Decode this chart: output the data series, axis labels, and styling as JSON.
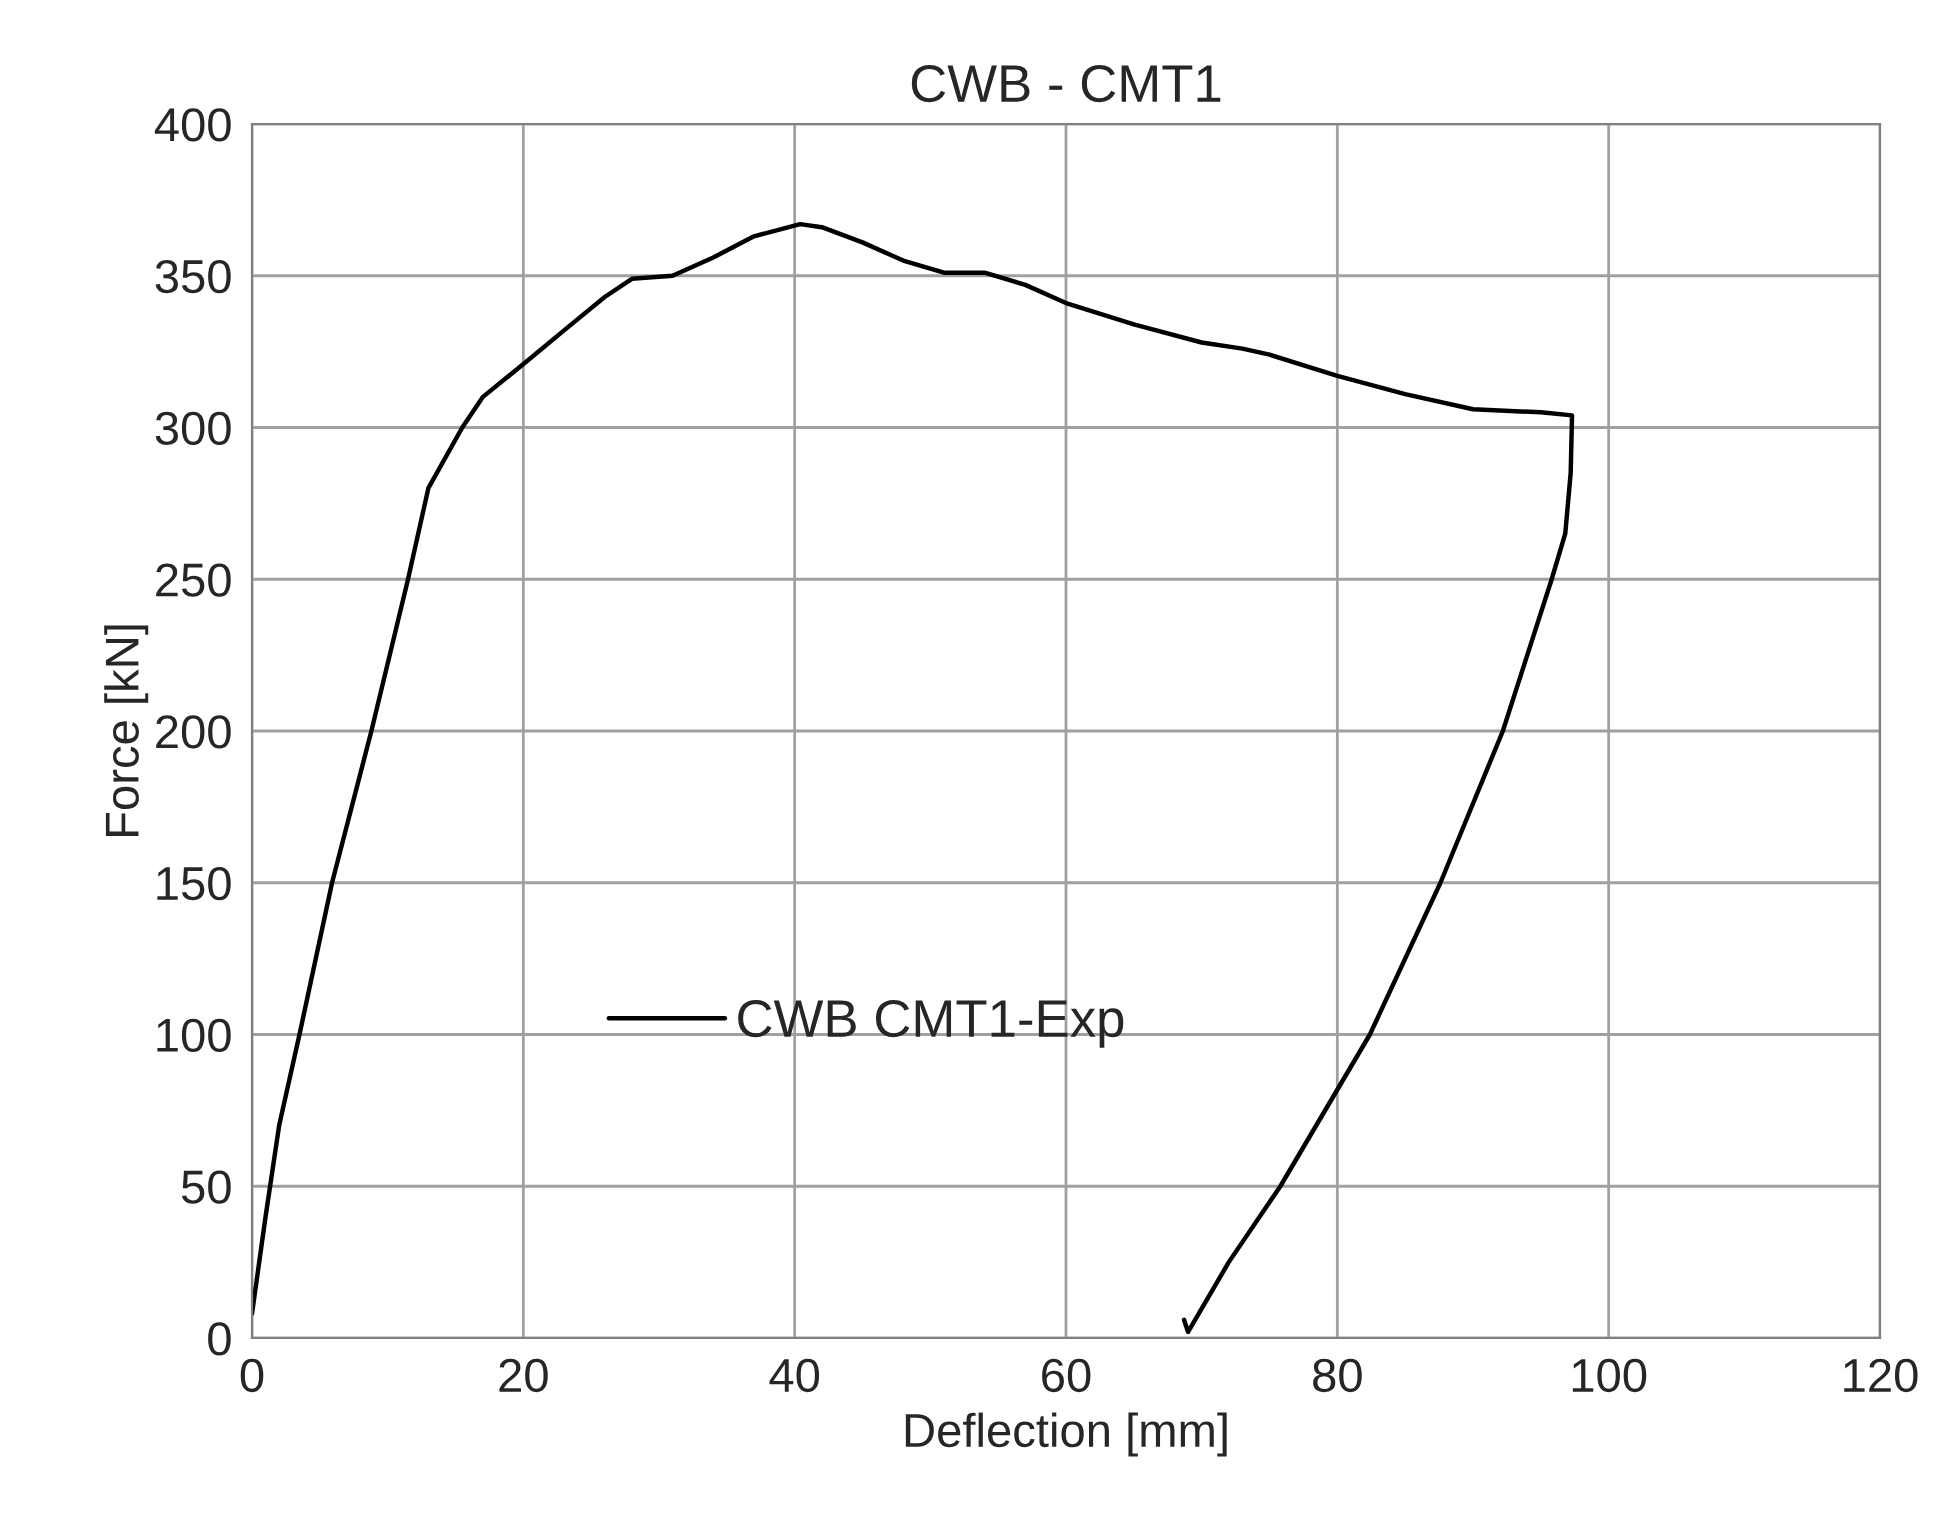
{
  "chart_data": {
    "type": "line",
    "title": "CWB - CMT1",
    "xlabel": "Deflection [mm]",
    "ylabel": "Force [kN]",
    "xlim": [
      0,
      120
    ],
    "xticks": [
      0,
      20,
      40,
      60,
      80,
      100,
      120
    ],
    "ylim": [
      0,
      400
    ],
    "yticks": [
      0,
      50,
      100,
      150,
      200,
      250,
      300,
      350,
      400
    ],
    "grid": true,
    "legend": "bottom left",
    "marker": "none",
    "line_style": "solid",
    "series": [
      {
        "name": "CWB CMT1-Exp",
        "color": "#000000",
        "x": [
          0,
          1,
          2,
          3.5,
          5.9,
          8.8,
          11.5,
          13,
          15.5,
          17,
          20.3,
          23,
          26,
          28,
          31,
          34,
          37,
          40.4,
          42,
          45,
          48,
          51,
          54,
          57,
          60,
          65,
          70,
          73,
          75,
          80,
          85,
          90,
          95,
          97.3,
          97.2,
          96.8,
          95.8,
          94,
          92.2,
          87.6,
          82.4,
          75.8,
          72,
          69,
          68.7
        ],
        "values": [
          8,
          40,
          70,
          100,
          150,
          200,
          250,
          280,
          300,
          310,
          322,
          332,
          343,
          349,
          350,
          356,
          363,
          367,
          366,
          361,
          355,
          351,
          351,
          347,
          341,
          334,
          328,
          326,
          324,
          317,
          311,
          306,
          305,
          304,
          285,
          265,
          250,
          225,
          200,
          150,
          100,
          50,
          25,
          2,
          6
        ]
      }
    ]
  }
}
